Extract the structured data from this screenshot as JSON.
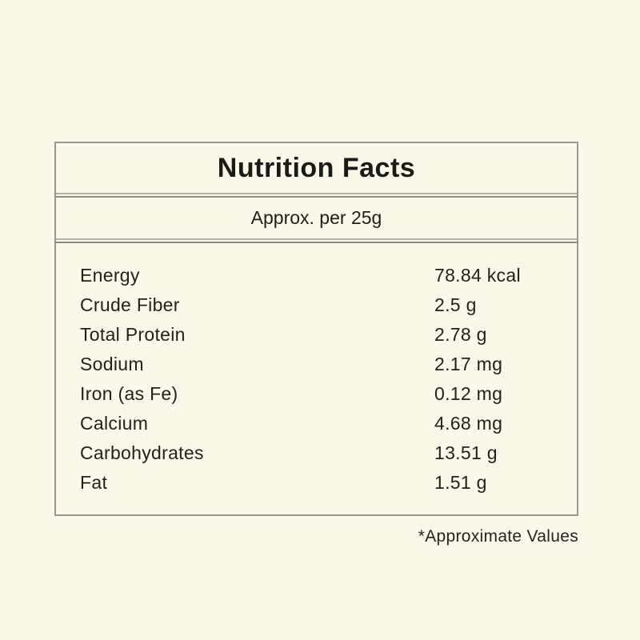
{
  "label": {
    "title": "Nutrition Facts",
    "serving": "Approx. per 25g",
    "rows": [
      {
        "name": "Energy",
        "value": "78.84 kcal"
      },
      {
        "name": "Crude Fiber",
        "value": "2.5 g"
      },
      {
        "name": "Total Protein",
        "value": "2.78 g"
      },
      {
        "name": "Sodium",
        "value": "2.17 mg"
      },
      {
        "name": "Iron (as Fe)",
        "value": "0.12 mg"
      },
      {
        "name": "Calcium",
        "value": "4.68 mg"
      },
      {
        "name": "Carbohydrates",
        "value": "13.51 g"
      },
      {
        "name": "Fat",
        "value": "1.51 g"
      }
    ],
    "footnote": "*Approximate Values",
    "colors": {
      "page_background": "#FAF8E8",
      "box_border": "#9A988D",
      "divider_light": "#B2B0A3",
      "divider_dark": "#8E8C82",
      "text": "#21211D",
      "title_text": "#1A1A16"
    }
  }
}
